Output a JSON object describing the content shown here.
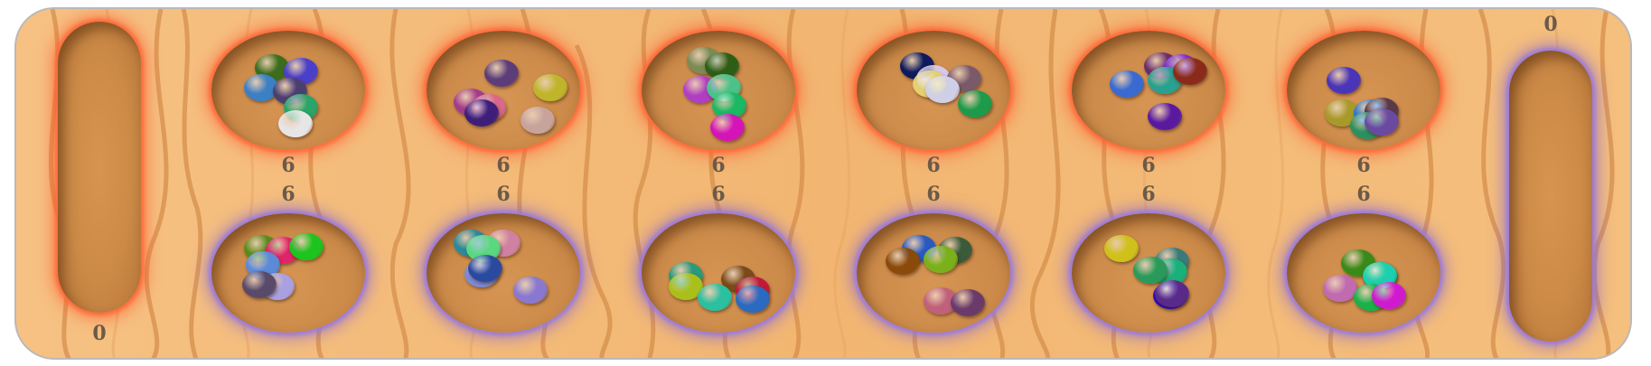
{
  "game": "Mancala",
  "stores": {
    "top_store": {
      "count": "0",
      "glow": "red"
    },
    "bottom_store": {
      "count": "0",
      "glow": "blue"
    }
  },
  "top_pits": [
    {
      "count": "6",
      "stones": [
        "#3b6d1c",
        "#4a3fc9",
        "#3b7fc4",
        "#4b3e70",
        "#2aa468",
        "#e6e6e6"
      ]
    },
    {
      "count": "6",
      "stones": [
        "#5c3d7a",
        "#bfb52a",
        "#a33c8a",
        "#d9688a",
        "#c7a39c",
        "#3d1f7a"
      ]
    },
    {
      "count": "6",
      "stones": [
        "#7c8a55",
        "#2d5e17",
        "#b03ec2",
        "#4bc28a",
        "#1ab864",
        "#d414b8"
      ]
    },
    {
      "count": "6",
      "stones": [
        "#0e1a5c",
        "#d8c8e8",
        "#7a5a6a",
        "#e3d070",
        "#1d9a4a",
        "#cfcfe8"
      ]
    },
    {
      "count": "6",
      "stones": [
        "#6a2e6a",
        "#7e2bd6",
        "#3a6ad0",
        "#2aa090",
        "#8a2a1a",
        "#5a1aa0"
      ]
    },
    {
      "count": "6",
      "stones": [
        "#4a34b8",
        "#a89a2a",
        "#2a78d0",
        "#5a3a4a",
        "#2a9060",
        "#6a4aa0"
      ]
    }
  ],
  "bottom_pits": [
    {
      "count": "6",
      "stones": [
        "#5a8a1a",
        "#e0246a",
        "#1dc41d",
        "#5a8ad8",
        "#a8a0e0",
        "#5a4a6a"
      ]
    },
    {
      "count": "6",
      "stones": [
        "#2a8a9a",
        "#d080a0",
        "#7a8ad8",
        "#5ad880",
        "#2a4aa0",
        "#8a78d0"
      ]
    },
    {
      "count": "6",
      "stones": [
        "#2a9a7a",
        "#7a4a1a",
        "#aac01a",
        "#c01a3a",
        "#2ac0a0",
        "#2a6ac0"
      ]
    },
    {
      "count": "6",
      "stones": [
        "#2a5ac0",
        "#3a5a3a",
        "#8a4a0a",
        "#7ab01a",
        "#c0607a",
        "#6a3a6a"
      ]
    },
    {
      "count": "6",
      "stones": [
        "#d0c01a",
        "#3a7a7a",
        "#1ab07a",
        "#2a0ac0",
        "#5a2a8a",
        "#2a9a5a"
      ]
    },
    {
      "count": "6",
      "stones": [
        "#3a8a1a",
        "#1aa01a",
        "#1ad0b0",
        "#c06ab0",
        "#1ab04a",
        "#d01ad0"
      ]
    }
  ]
}
